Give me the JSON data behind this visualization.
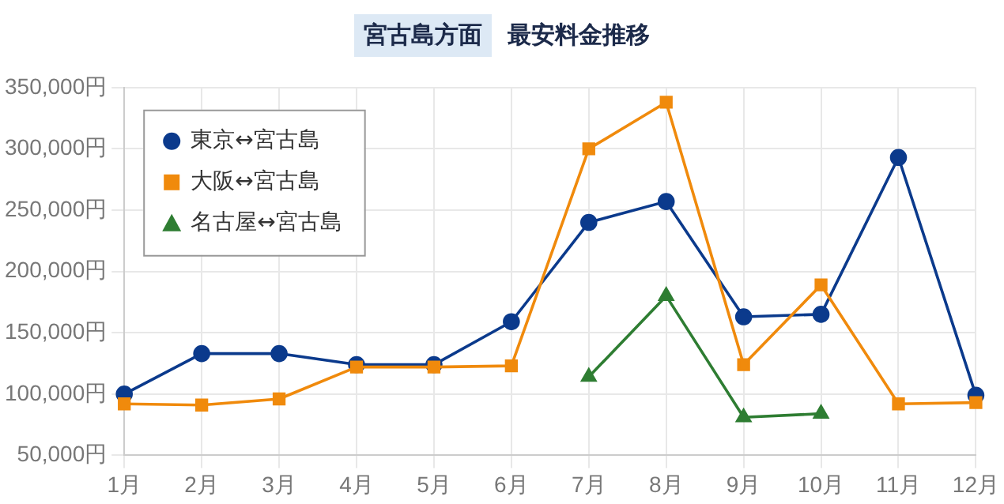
{
  "chart_data": {
    "type": "line",
    "title": "宮古島方面",
    "subtitle": "最安料金推移",
    "categories": [
      "1月",
      "2月",
      "3月",
      "4月",
      "5月",
      "6月",
      "7月",
      "8月",
      "9月",
      "10月",
      "11月",
      "12月"
    ],
    "series": [
      {
        "name": "東京↔宮古島",
        "color": "#0b3a8c",
        "marker": "circle",
        "values": [
          100000,
          133000,
          133000,
          124000,
          124000,
          159000,
          240000,
          257000,
          163000,
          165000,
          293000,
          99000
        ]
      },
      {
        "name": "大阪↔宮古島",
        "color": "#f08a0c",
        "marker": "square",
        "values": [
          92000,
          91000,
          96000,
          122000,
          122000,
          123000,
          300000,
          338000,
          124000,
          189000,
          92000,
          93000
        ]
      },
      {
        "name": "名古屋↔宮古島",
        "color": "#2e7d32",
        "marker": "triangle",
        "values": [
          null,
          null,
          null,
          null,
          null,
          null,
          114000,
          180000,
          81000,
          84000,
          null,
          null
        ]
      }
    ],
    "ylim": [
      50000,
      350000
    ],
    "yticks": [
      {
        "value": 50000,
        "label": "50,000円"
      },
      {
        "value": 100000,
        "label": "100,000円"
      },
      {
        "value": 150000,
        "label": "150,000円"
      },
      {
        "value": 200000,
        "label": "200,000円"
      },
      {
        "value": 250000,
        "label": "250,000円"
      },
      {
        "value": 300000,
        "label": "300,000円"
      },
      {
        "value": 350000,
        "label": "350,000円"
      }
    ],
    "grid": true,
    "legend": "top left",
    "line_style": "solid"
  }
}
